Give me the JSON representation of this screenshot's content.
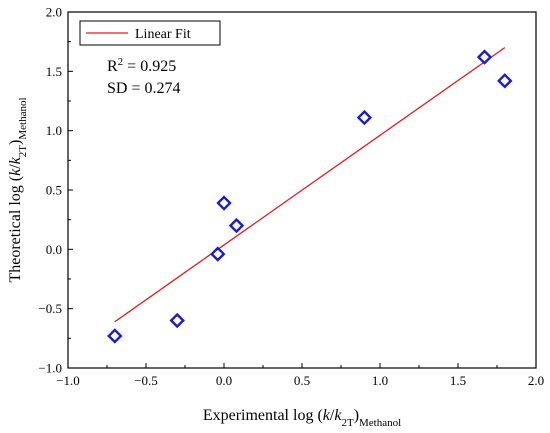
{
  "chart_data": {
    "type": "scatter",
    "xlabel": {
      "prefix": "Experimental log (",
      "k": "k",
      "slash": "/",
      "k2": "k",
      "k2_sub": "2T",
      "close": ")",
      "sub": "Methanol"
    },
    "ylabel": {
      "prefix": "Theoretical log (",
      "k": "k",
      "slash": "/",
      "k2": "k",
      "k2_sub": "2T",
      "close": ")",
      "sub": "Methanol"
    },
    "xlim": [
      -1.0,
      2.0
    ],
    "ylim": [
      -1.0,
      2.0
    ],
    "xticks": [
      -1.0,
      -0.5,
      0.0,
      0.5,
      1.0,
      1.5,
      2.0
    ],
    "yticks": [
      -1.0,
      -0.5,
      0.0,
      0.5,
      1.0,
      1.5,
      2.0
    ],
    "xtick_labels": [
      "−1.0",
      "−0.5",
      "0.0",
      "0.5",
      "1.0",
      "1.5",
      "2.0"
    ],
    "ytick_labels": [
      "−1.0",
      "−0.5",
      "0.0",
      "0.5",
      "1.0",
      "1.5",
      "2.0"
    ],
    "points": [
      {
        "x": -0.7,
        "y": -0.73
      },
      {
        "x": -0.3,
        "y": -0.6
      },
      {
        "x": -0.04,
        "y": -0.04
      },
      {
        "x": 0.0,
        "y": 0.39
      },
      {
        "x": 0.08,
        "y": 0.2
      },
      {
        "x": 0.9,
        "y": 1.11
      },
      {
        "x": 1.67,
        "y": 1.62
      },
      {
        "x": 1.8,
        "y": 1.42
      }
    ],
    "fit_line": {
      "x": [
        -0.7,
        1.8
      ],
      "y": [
        -0.61,
        1.7
      ]
    },
    "legend": {
      "label": "Linear Fit",
      "position": "top-left"
    },
    "stats": {
      "r2_label": "R",
      "r2_sup": "2",
      "r2_value": " = 0.925",
      "sd": "SD = 0.274"
    },
    "grid": false,
    "colors": {
      "points": "#1a1ad6",
      "fit": "#e41a1c",
      "axis": "#000000"
    }
  }
}
